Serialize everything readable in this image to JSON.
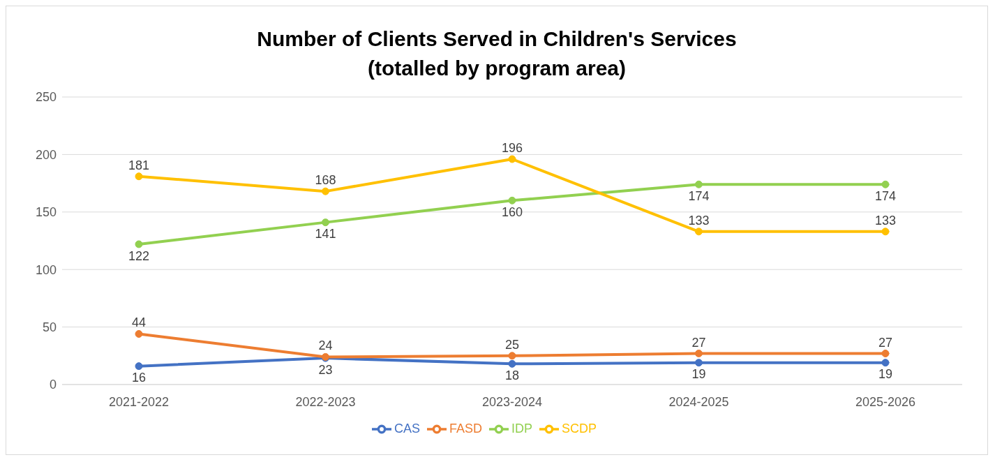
{
  "chart_data": {
    "type": "line",
    "title": "Number of Clients Served in Children's Services",
    "subtitle": "(totalled by program area)",
    "categories": [
      "2021-2022",
      "2022-2023",
      "2023-2024",
      "2024-2025",
      "2025-2026"
    ],
    "series": [
      {
        "name": "CAS",
        "color": "#4472c4",
        "values": [
          16,
          23,
          18,
          19,
          19
        ]
      },
      {
        "name": "FASD",
        "color": "#ed7d31",
        "values": [
          44,
          24,
          25,
          27,
          27
        ]
      },
      {
        "name": "IDP",
        "color": "#92d050",
        "values": [
          122,
          141,
          160,
          174,
          174
        ]
      },
      {
        "name": "SCDP",
        "color": "#ffc000",
        "values": [
          181,
          168,
          196,
          133,
          133
        ]
      }
    ],
    "ylim": [
      0,
      250
    ],
    "yticks": [
      0,
      50,
      100,
      150,
      200,
      250
    ],
    "grid": "y",
    "legend": "bottom",
    "marker": "circle",
    "line_style": "solid",
    "data_labels": true
  }
}
